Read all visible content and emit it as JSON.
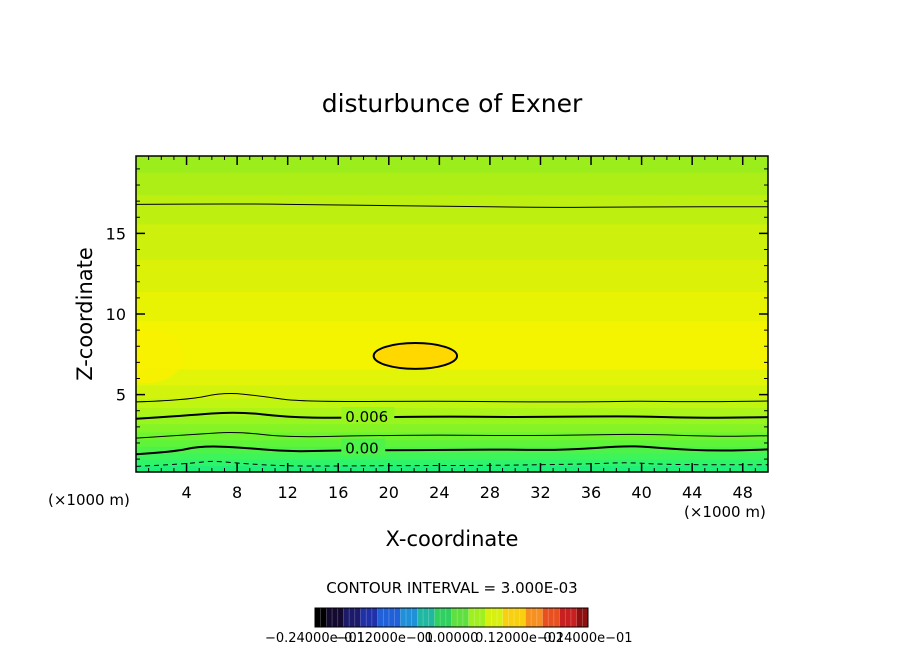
{
  "chart_data": {
    "type": "heatmap",
    "subtype": "filled-contour",
    "title": "disturbunce of Exner",
    "xlabel": "X-coordinate",
    "ylabel": "Z-coordinate",
    "x_unit_left": "(×1000 m)",
    "x_unit_right": "(×1000 m)",
    "xlim": [
      0,
      50
    ],
    "ylim": [
      0.2,
      19.8
    ],
    "x_ticks": [
      4,
      8,
      12,
      16,
      20,
      24,
      28,
      32,
      36,
      40,
      44,
      48
    ],
    "y_ticks": [
      5,
      10,
      15
    ],
    "x_tick_labels": [
      "4",
      "8",
      "12",
      "16",
      "20",
      "24",
      "28",
      "32",
      "36",
      "40",
      "44",
      "48"
    ],
    "y_tick_labels": [
      "5",
      "10",
      "15"
    ],
    "contour_interval_text": "CONTOUR INTERVAL = 3.000E-03",
    "contour_labels": [
      {
        "text": "0.006",
        "x": 16.4,
        "z": 3.6
      },
      {
        "text": "0.00",
        "x": 16.4,
        "z": 1.65
      }
    ],
    "contour_lines": [
      {
        "level": 0.0,
        "style": "dashed",
        "points": [
          [
            0,
            0.55
          ],
          [
            4,
            0.7
          ],
          [
            6,
            0.9
          ],
          [
            8,
            0.75
          ],
          [
            12,
            0.55
          ],
          [
            20,
            0.6
          ],
          [
            28,
            0.6
          ],
          [
            36,
            0.7
          ],
          [
            39,
            0.8
          ],
          [
            42,
            0.65
          ],
          [
            50,
            0.65
          ]
        ]
      },
      {
        "level": 0.003,
        "style": "bold",
        "points": [
          [
            0,
            1.3
          ],
          [
            3,
            1.45
          ],
          [
            5,
            1.8
          ],
          [
            8,
            1.75
          ],
          [
            12,
            1.45
          ],
          [
            16,
            1.55
          ],
          [
            22,
            1.55
          ],
          [
            28,
            1.6
          ],
          [
            34,
            1.55
          ],
          [
            39,
            1.85
          ],
          [
            42,
            1.65
          ],
          [
            46,
            1.5
          ],
          [
            50,
            1.6
          ]
        ]
      },
      {
        "level": 0.0045,
        "style": "thin",
        "points": [
          [
            0,
            2.3
          ],
          [
            5,
            2.55
          ],
          [
            8,
            2.7
          ],
          [
            12,
            2.35
          ],
          [
            18,
            2.45
          ],
          [
            24,
            2.5
          ],
          [
            30,
            2.45
          ],
          [
            36,
            2.5
          ],
          [
            40,
            2.55
          ],
          [
            46,
            2.4
          ],
          [
            50,
            2.45
          ]
        ]
      },
      {
        "level": 0.006,
        "style": "bold",
        "points": [
          [
            0,
            3.5
          ],
          [
            4,
            3.7
          ],
          [
            8,
            3.95
          ],
          [
            12,
            3.6
          ],
          [
            16,
            3.55
          ],
          [
            24,
            3.65
          ],
          [
            30,
            3.6
          ],
          [
            36,
            3.65
          ],
          [
            40,
            3.65
          ],
          [
            44,
            3.55
          ],
          [
            50,
            3.6
          ]
        ]
      },
      {
        "level": 0.0075,
        "style": "thin",
        "points": [
          [
            0,
            4.55
          ],
          [
            4,
            4.65
          ],
          [
            7,
            5.15
          ],
          [
            10,
            4.9
          ],
          [
            13,
            4.55
          ],
          [
            24,
            4.6
          ],
          [
            30,
            4.55
          ],
          [
            36,
            4.55
          ],
          [
            40,
            4.6
          ],
          [
            44,
            4.55
          ],
          [
            50,
            4.6
          ]
        ]
      },
      {
        "level": 0.009,
        "style": "thin",
        "points": [
          [
            0,
            16.8
          ],
          [
            8,
            16.85
          ],
          [
            16,
            16.75
          ],
          [
            24,
            16.7
          ],
          [
            32,
            16.6
          ],
          [
            40,
            16.65
          ],
          [
            50,
            16.65
          ]
        ]
      }
    ],
    "closed_contours": [
      {
        "level": 0.009,
        "style": "bold",
        "center": [
          22.1,
          7.4
        ],
        "radii": [
          3.3,
          0.8
        ]
      }
    ],
    "color_bands": [
      {
        "z_min": 0.2,
        "z_max": 0.6,
        "color": "#1ff07a"
      },
      {
        "z_min": 0.6,
        "z_max": 1.0,
        "color": "#2ff46a"
      },
      {
        "z_min": 1.0,
        "z_max": 1.4,
        "color": "#3ef45b"
      },
      {
        "z_min": 1.4,
        "z_max": 1.8,
        "color": "#4ef34a"
      },
      {
        "z_min": 1.8,
        "z_max": 2.2,
        "color": "#5ef43a"
      },
      {
        "z_min": 2.2,
        "z_max": 2.7,
        "color": "#70f42e"
      },
      {
        "z_min": 2.7,
        "z_max": 3.2,
        "color": "#84f426"
      },
      {
        "z_min": 3.2,
        "z_max": 3.7,
        "color": "#98f51e"
      },
      {
        "z_min": 3.7,
        "z_max": 4.2,
        "color": "#acf518"
      },
      {
        "z_min": 4.2,
        "z_max": 4.8,
        "color": "#c0f512"
      },
      {
        "z_min": 4.8,
        "z_max": 5.6,
        "color": "#d2f40c"
      },
      {
        "z_min": 5.6,
        "z_max": 6.6,
        "color": "#e2f408"
      },
      {
        "z_min": 6.6,
        "z_max": 9.6,
        "color": "#f4f400"
      },
      {
        "z_min": 9.6,
        "z_max": 11.4,
        "color": "#e8f304"
      },
      {
        "z_min": 11.4,
        "z_max": 13.4,
        "color": "#dbf208"
      },
      {
        "z_min": 13.4,
        "z_max": 15.6,
        "color": "#cdf10c"
      },
      {
        "z_min": 15.6,
        "z_max": 17.4,
        "color": "#bdf010"
      },
      {
        "z_min": 17.4,
        "z_max": 18.8,
        "color": "#acee16"
      },
      {
        "z_min": 18.8,
        "z_max": 19.8,
        "color": "#9ced1c"
      }
    ],
    "blob_colors": {
      "inner": "#ffd800",
      "left_edge": "#f8f100"
    },
    "colorbar": {
      "min": -0.024,
      "max": 0.024,
      "tick_labels": [
        "−0.24000e−01",
        "−0.12000e−01",
        "0.00000",
        "0.12000e−01",
        "0.24000e−01"
      ],
      "colors": [
        "#000000",
        "#140a30",
        "#1c1a6a",
        "#2030a8",
        "#2060d8",
        "#2090d8",
        "#20b8a0",
        "#30d060",
        "#60e040",
        "#a0f020",
        "#d8f010",
        "#f8d010",
        "#f89020",
        "#e85020",
        "#c82020",
        "#901010"
      ]
    }
  }
}
